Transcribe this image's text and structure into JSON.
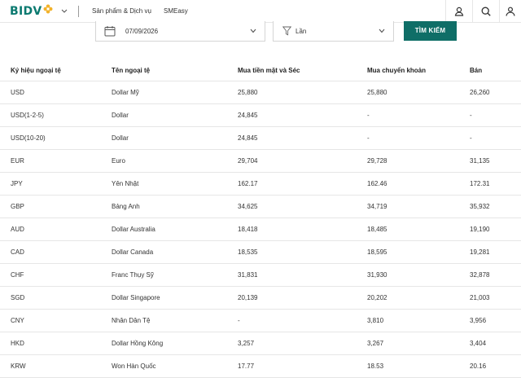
{
  "header": {
    "logo": "BIDV",
    "nav": [
      {
        "label": "Sản phẩm & Dịch vụ"
      },
      {
        "label": "SMEasy"
      }
    ]
  },
  "filter": {
    "date_value": "07/09/2026",
    "times_value": "Lần",
    "search_label": "TÌM KIẾM"
  },
  "table": {
    "headers": [
      "Ký hiệu ngoại tệ",
      "Tên ngoại tệ",
      "Mua tiền mặt và Séc",
      "Mua chuyển khoản",
      "Bán"
    ],
    "rows": [
      [
        "USD",
        "Dollar Mỹ",
        "25,880",
        "25,880",
        "26,260"
      ],
      [
        "USD(1-2-5)",
        "Dollar",
        "24,845",
        "-",
        "-"
      ],
      [
        "USD(10-20)",
        "Dollar",
        "24,845",
        "-",
        "-"
      ],
      [
        "EUR",
        "Euro",
        "29,704",
        "29,728",
        "31,135"
      ],
      [
        "JPY",
        "Yên Nhật",
        "162.17",
        "162.46",
        "172.31"
      ],
      [
        "GBP",
        "Bảng Anh",
        "34,625",
        "34,719",
        "35,932"
      ],
      [
        "AUD",
        "Dollar Australia",
        "18,418",
        "18,485",
        "19,190"
      ],
      [
        "CAD",
        "Dollar Canada",
        "18,535",
        "18,595",
        "19,281"
      ],
      [
        "CHF",
        "Franc Thụy Sỹ",
        "31,831",
        "31,930",
        "32,878"
      ],
      [
        "SGD",
        "Dollar Singapore",
        "20,139",
        "20,202",
        "21,003"
      ],
      [
        "CNY",
        "Nhân Dân Tệ",
        "-",
        "3,810",
        "3,956"
      ],
      [
        "HKD",
        "Dollar Hồng Kông",
        "3,257",
        "3,267",
        "3,404"
      ],
      [
        "KRW",
        "Won Hàn Quốc",
        "17.77",
        "18.53",
        "20.16"
      ]
    ]
  },
  "colors": {
    "brand": "#0b7a70",
    "accent_gold": "#f2b22a",
    "button": "#0f6e67"
  },
  "icons": [
    "flower-logo-icon",
    "chevron-down-icon",
    "user-icon",
    "search-icon",
    "account-icon",
    "calendar-icon",
    "funnel-icon"
  ]
}
